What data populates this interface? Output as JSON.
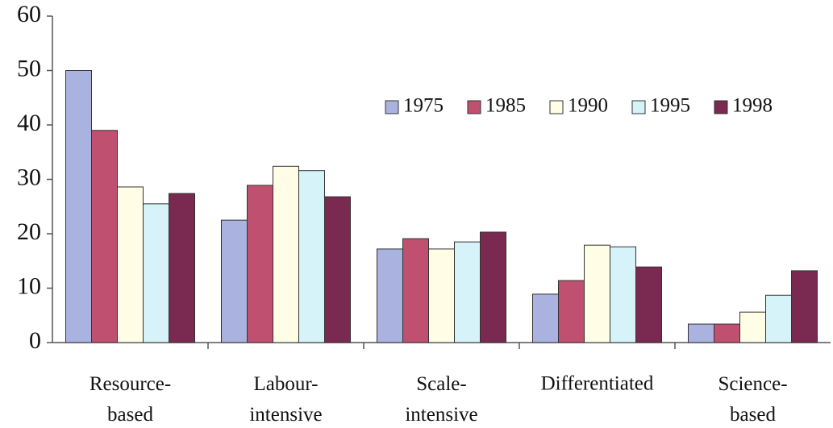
{
  "chart_data": {
    "type": "bar",
    "categories": [
      "Resource-\nbased",
      "Labour-\nintensive",
      "Scale-\nintensive",
      "Differentiated",
      "Science-\nbased"
    ],
    "series": [
      {
        "name": "1975",
        "color": "#aab3e0",
        "values": [
          50,
          22.5,
          17.2,
          8.9,
          3.4
        ]
      },
      {
        "name": "1985",
        "color": "#c0506f",
        "values": [
          39,
          28.9,
          19.1,
          11.4,
          3.4
        ]
      },
      {
        "name": "1990",
        "color": "#fffde6",
        "values": [
          28.6,
          32.4,
          17.2,
          17.9,
          5.6
        ]
      },
      {
        "name": "1995",
        "color": "#d6f3fa",
        "values": [
          25.5,
          31.6,
          18.5,
          17.6,
          8.7
        ]
      },
      {
        "name": "1998",
        "color": "#7a2a50",
        "values": [
          27.4,
          26.8,
          20.3,
          13.9,
          13.2
        ]
      }
    ],
    "ylim": [
      0,
      60
    ],
    "yticks": [
      0,
      10,
      20,
      30,
      40,
      50,
      60
    ],
    "grid": false,
    "legend": "top-right"
  }
}
